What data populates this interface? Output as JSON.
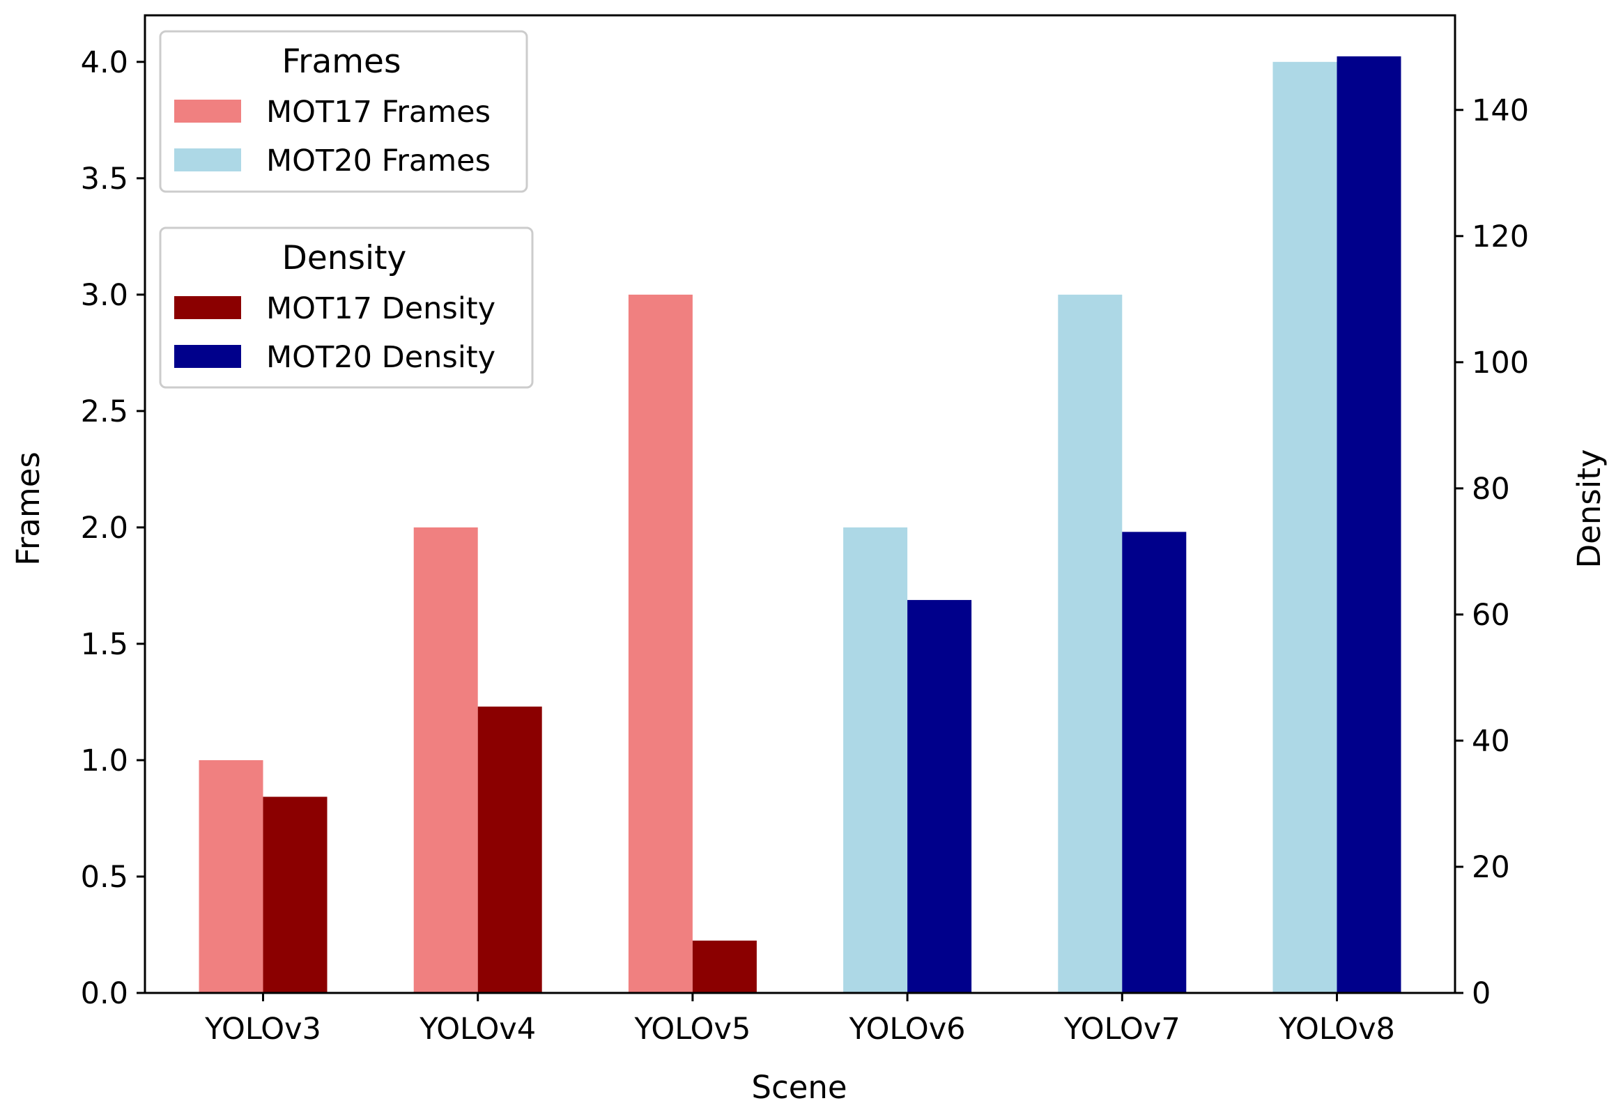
{
  "chart_data": {
    "type": "bar",
    "xlabel": "Scene",
    "ylabel": "Frames",
    "y2label": "Density",
    "categories": [
      "YOLOv3",
      "YOLOv4",
      "YOLOv5",
      "YOLOv6",
      "YOLOv7",
      "YOLOv8"
    ],
    "ylim": [
      0,
      4.2
    ],
    "y2lim": [
      0,
      155
    ],
    "yticks": [
      0.0,
      0.5,
      1.0,
      1.5,
      2.0,
      2.5,
      3.0,
      3.5,
      4.0
    ],
    "ytick_labels": [
      "0.0",
      "0.5",
      "1.0",
      "1.5",
      "2.0",
      "2.5",
      "3.0",
      "3.5",
      "4.0"
    ],
    "y2ticks": [
      0,
      20,
      40,
      60,
      80,
      100,
      120,
      140
    ],
    "y2tick_labels": [
      "0",
      "20",
      "40",
      "60",
      "80",
      "100",
      "120",
      "140"
    ],
    "series": [
      {
        "name": "MOT17 Frames",
        "axis": "left",
        "color": "#f08080",
        "slot": "left",
        "values": [
          1.0,
          2.0,
          3.0,
          null,
          null,
          null
        ]
      },
      {
        "name": "MOT20 Frames",
        "axis": "left",
        "color": "#add8e6",
        "slot": "left",
        "values": [
          null,
          null,
          null,
          2.0,
          3.0,
          4.0
        ]
      },
      {
        "name": "MOT17 Density",
        "axis": "right",
        "color": "#8b0000",
        "slot": "right",
        "values": [
          31.1,
          45.4,
          8.3,
          null,
          null,
          null
        ]
      },
      {
        "name": "MOT20 Density",
        "axis": "right",
        "color": "#00008b",
        "slot": "right",
        "values": [
          null,
          null,
          null,
          62.3,
          73.1,
          148.5
        ]
      }
    ],
    "legends": [
      {
        "title": "Frames",
        "placement": "upper-left",
        "entries": [
          "MOT17 Frames",
          "MOT20 Frames"
        ]
      },
      {
        "title": "Density",
        "placement": "upper-left-below",
        "entries": [
          "MOT17 Density",
          "MOT20 Density"
        ]
      }
    ],
    "grid": false
  }
}
